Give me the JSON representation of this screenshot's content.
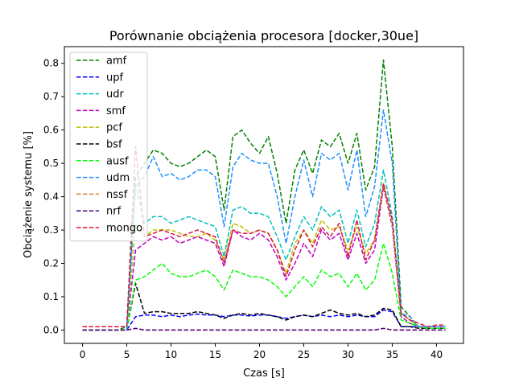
{
  "chart_data": {
    "type": "line",
    "title": "Porównanie obciążenia procesora [docker,30ue]",
    "xlabel": "Czas [s]",
    "ylabel": "Obciążenie systemu [%]",
    "xlim": [
      -2.05,
      43.05
    ],
    "ylim": [
      -0.04,
      0.85
    ],
    "xticks": [
      0,
      5,
      10,
      15,
      20,
      25,
      30,
      35,
      40
    ],
    "yticks": [
      0.0,
      0.1,
      0.2,
      0.3,
      0.4,
      0.5,
      0.6,
      0.7,
      0.8
    ],
    "grid": false,
    "legend_position": "upper-left",
    "x": [
      0,
      1,
      2,
      3,
      4,
      5,
      6,
      7,
      8,
      9,
      10,
      11,
      12,
      13,
      14,
      15,
      16,
      17,
      18,
      19,
      20,
      21,
      22,
      23,
      24,
      25,
      26,
      27,
      28,
      29,
      30,
      31,
      32,
      33,
      34,
      35,
      36,
      37,
      38,
      39,
      40,
      41
    ],
    "series": [
      {
        "name": "amf",
        "color": "#008000",
        "values": [
          0,
          0,
          0,
          0,
          0,
          0.01,
          0.46,
          0.5,
          0.54,
          0.53,
          0.5,
          0.49,
          0.5,
          0.52,
          0.54,
          0.52,
          0.36,
          0.58,
          0.6,
          0.56,
          0.53,
          0.58,
          0.47,
          0.32,
          0.48,
          0.54,
          0.47,
          0.57,
          0.55,
          0.59,
          0.5,
          0.59,
          0.42,
          0.49,
          0.81,
          0.55,
          0.07,
          0.04,
          0.01,
          0.01,
          0.01,
          0.01
        ]
      },
      {
        "name": "upf",
        "color": "#0000ff",
        "values": [
          0,
          0,
          0,
          0,
          0,
          0,
          0.04,
          0.045,
          0.045,
          0.04,
          0.045,
          0.04,
          0.045,
          0.048,
          0.045,
          0.045,
          0.04,
          0.045,
          0.045,
          0.042,
          0.045,
          0.045,
          0.04,
          0.035,
          0.04,
          0.045,
          0.04,
          0.045,
          0.04,
          0.045,
          0.04,
          0.045,
          0.04,
          0.04,
          0.06,
          0.055,
          0.01,
          0.01,
          0.01,
          0.005,
          0.005,
          0.005
        ]
      },
      {
        "name": "udr",
        "color": "#00bfbf",
        "values": [
          0,
          0,
          0,
          0,
          0,
          0,
          0.44,
          0.32,
          0.34,
          0.34,
          0.32,
          0.33,
          0.34,
          0.33,
          0.32,
          0.31,
          0.22,
          0.36,
          0.37,
          0.35,
          0.35,
          0.34,
          0.28,
          0.21,
          0.28,
          0.34,
          0.3,
          0.37,
          0.34,
          0.36,
          0.26,
          0.36,
          0.25,
          0.32,
          0.48,
          0.34,
          0.05,
          0.03,
          0.01,
          0.01,
          0.01,
          0.01
        ]
      },
      {
        "name": "smf",
        "color": "#bf00bf",
        "values": [
          0,
          0,
          0,
          0,
          0,
          0,
          0.24,
          0.26,
          0.28,
          0.27,
          0.28,
          0.26,
          0.27,
          0.28,
          0.27,
          0.26,
          0.19,
          0.3,
          0.28,
          0.27,
          0.29,
          0.27,
          0.22,
          0.15,
          0.2,
          0.26,
          0.22,
          0.3,
          0.27,
          0.29,
          0.21,
          0.29,
          0.2,
          0.24,
          0.43,
          0.31,
          0.04,
          0.02,
          0.01,
          0.01,
          0.01,
          0.01
        ]
      },
      {
        "name": "pcf",
        "color": "#bfbf00",
        "values": [
          0,
          0,
          0,
          0,
          0,
          0,
          0.32,
          0.28,
          0.3,
          0.3,
          0.3,
          0.29,
          0.28,
          0.28,
          0.29,
          0.27,
          0.21,
          0.32,
          0.31,
          0.29,
          0.3,
          0.29,
          0.24,
          0.17,
          0.26,
          0.3,
          0.26,
          0.33,
          0.3,
          0.31,
          0.24,
          0.31,
          0.23,
          0.27,
          0.44,
          0.32,
          0.05,
          0.03,
          0.01,
          0.01,
          0.01,
          0.01
        ]
      },
      {
        "name": "bsf",
        "color": "#000000",
        "values": [
          0,
          0,
          0,
          0,
          0,
          0,
          0.14,
          0.05,
          0.055,
          0.055,
          0.05,
          0.05,
          0.05,
          0.055,
          0.05,
          0.045,
          0.035,
          0.045,
          0.05,
          0.045,
          0.05,
          0.045,
          0.04,
          0.03,
          0.04,
          0.045,
          0.04,
          0.05,
          0.06,
          0.05,
          0.045,
          0.05,
          0.04,
          0.045,
          0.065,
          0.06,
          0.01,
          0.01,
          0.005,
          0.005,
          0.005,
          0.005
        ]
      },
      {
        "name": "ausf",
        "color": "#00ff00",
        "values": [
          0,
          0,
          0,
          0,
          0,
          0,
          0.15,
          0.16,
          0.18,
          0.2,
          0.17,
          0.16,
          0.16,
          0.17,
          0.18,
          0.16,
          0.12,
          0.18,
          0.17,
          0.16,
          0.16,
          0.15,
          0.13,
          0.1,
          0.13,
          0.16,
          0.13,
          0.18,
          0.16,
          0.17,
          0.13,
          0.17,
          0.12,
          0.15,
          0.26,
          0.17,
          0.03,
          0.02,
          0.01,
          0.005,
          0.005,
          0.005
        ]
      },
      {
        "name": "udm",
        "color": "#1e90ff",
        "values": [
          0,
          0,
          0,
          0,
          0,
          0,
          0.43,
          0.46,
          0.52,
          0.46,
          0.47,
          0.45,
          0.46,
          0.48,
          0.48,
          0.46,
          0.31,
          0.49,
          0.53,
          0.51,
          0.5,
          0.5,
          0.4,
          0.26,
          0.4,
          0.51,
          0.4,
          0.53,
          0.51,
          0.53,
          0.42,
          0.54,
          0.34,
          0.43,
          0.66,
          0.5,
          0.05,
          0.04,
          0.01,
          0.01,
          0.01,
          0.01
        ]
      },
      {
        "name": "nssf",
        "color": "#cd853f",
        "values": [
          0,
          0,
          0,
          0,
          0,
          0,
          0.005,
          0,
          0,
          0,
          0,
          0,
          0,
          0,
          0,
          0,
          0,
          0,
          0,
          0,
          0,
          0,
          0,
          0,
          0,
          0,
          0,
          0,
          0,
          0,
          0,
          0,
          0,
          0,
          0.005,
          0,
          0,
          0,
          0,
          0,
          0,
          0
        ]
      },
      {
        "name": "nrf",
        "color": "#4b0082",
        "values": [
          0,
          0,
          0,
          0,
          0,
          0,
          0.005,
          0,
          0,
          0,
          0,
          0,
          0,
          0,
          0,
          0,
          0,
          0,
          0,
          0,
          0,
          0,
          0,
          0,
          0,
          0,
          0,
          0,
          0,
          0,
          0,
          0,
          0,
          0,
          0.005,
          0,
          0,
          0,
          0,
          0,
          0,
          0
        ]
      },
      {
        "name": "mongo",
        "color": "#dc143c",
        "values": [
          0.01,
          0.01,
          0.01,
          0.01,
          0.01,
          0.01,
          0.55,
          0.28,
          0.29,
          0.3,
          0.29,
          0.28,
          0.29,
          0.3,
          0.29,
          0.28,
          0.2,
          0.3,
          0.29,
          0.29,
          0.3,
          0.29,
          0.24,
          0.16,
          0.24,
          0.3,
          0.25,
          0.31,
          0.28,
          0.32,
          0.22,
          0.33,
          0.21,
          0.27,
          0.44,
          0.33,
          0.05,
          0.03,
          0.02,
          0.01,
          0.015,
          0.015
        ]
      }
    ]
  }
}
